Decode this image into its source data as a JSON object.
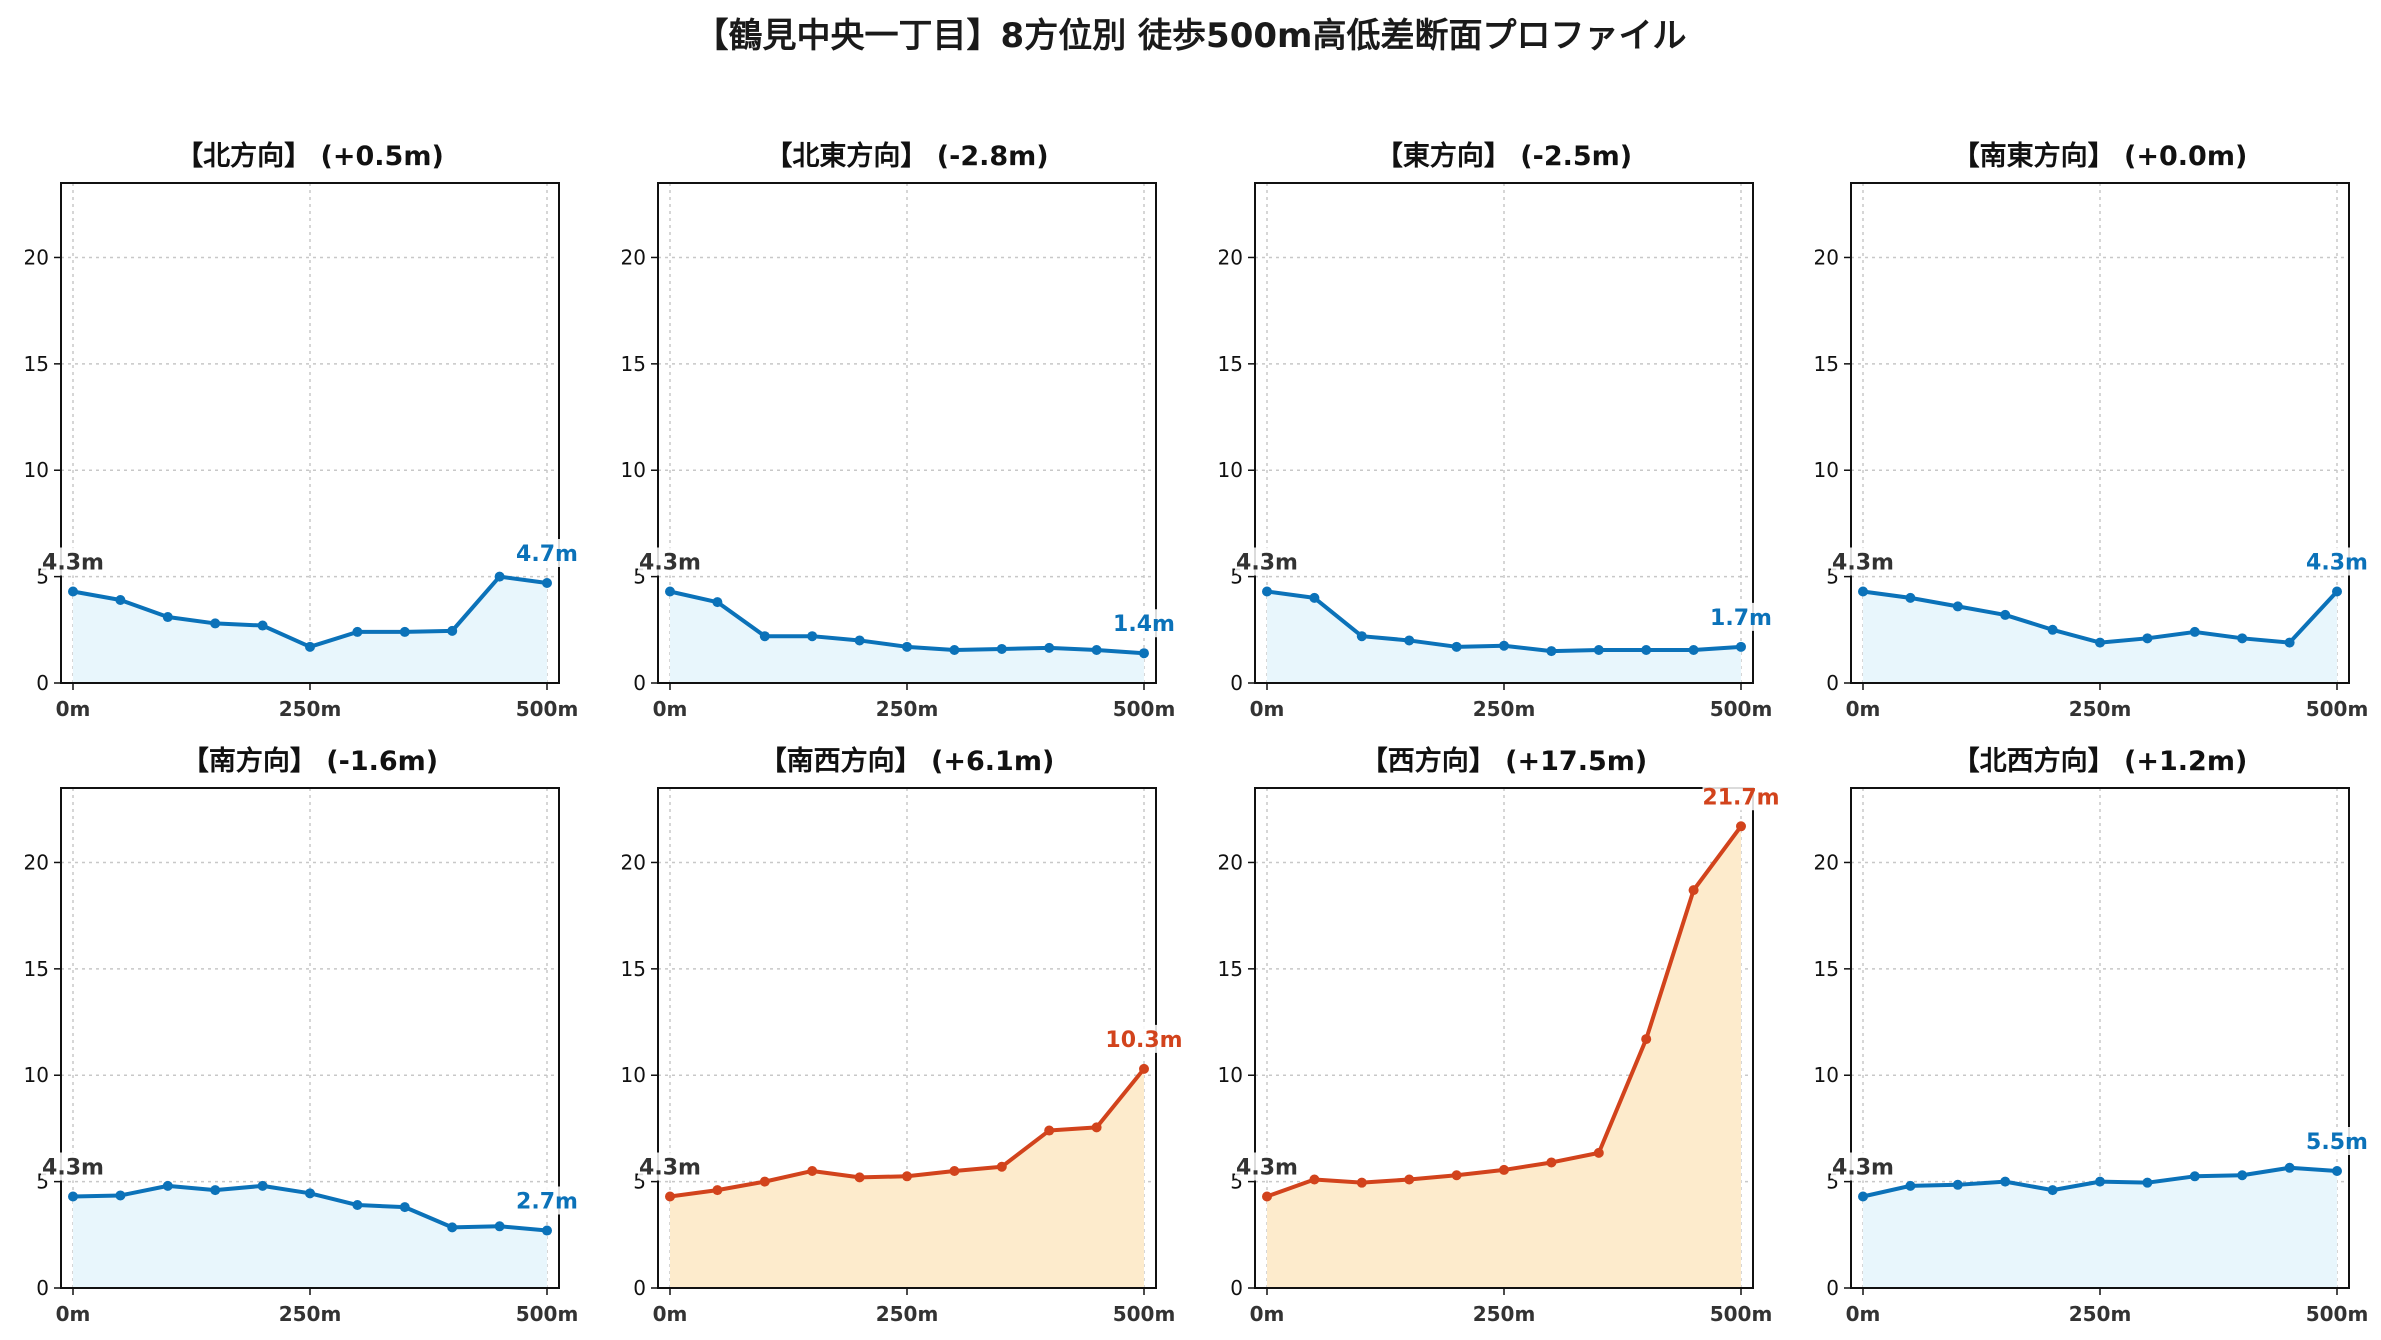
{
  "title": "【鶴見中央一丁目】8方位別 徒歩500m高低差断面プロファイル",
  "colors": {
    "blue_line": "#0b72b9",
    "blue_fill": "#e8f6fc",
    "red_line": "#d2431c",
    "red_fill": "#fdebcc",
    "grid": "#c8c8c8",
    "start_label": "#333333"
  },
  "chart_data": [
    {
      "type": "line",
      "title": "【北方向】 (+0.5m)",
      "x_tick_labels": [
        "0m",
        "250m",
        "500m"
      ],
      "x": [
        0,
        50,
        100,
        150,
        200,
        250,
        300,
        350,
        400,
        450,
        500
      ],
      "y": [
        4.3,
        3.9,
        3.1,
        2.8,
        2.7,
        1.7,
        2.4,
        2.4,
        2.45,
        5.0,
        4.7
      ],
      "ylim": [
        0,
        23.5
      ],
      "y_ticks": [
        0,
        5,
        10,
        15,
        20
      ],
      "start_label": "4.3m",
      "end_label": "4.7m",
      "color": "blue",
      "grid": true
    },
    {
      "type": "line",
      "title": "【北東方向】 (-2.8m)",
      "x_tick_labels": [
        "0m",
        "250m",
        "500m"
      ],
      "x": [
        0,
        50,
        100,
        150,
        200,
        250,
        300,
        350,
        400,
        450,
        500
      ],
      "y": [
        4.3,
        3.8,
        2.2,
        2.2,
        2.0,
        1.7,
        1.55,
        1.6,
        1.65,
        1.55,
        1.4
      ],
      "ylim": [
        0,
        23.5
      ],
      "y_ticks": [
        0,
        5,
        10,
        15,
        20
      ],
      "start_label": "4.3m",
      "end_label": "1.4m",
      "color": "blue",
      "grid": true
    },
    {
      "type": "line",
      "title": "【東方向】 (-2.5m)",
      "x_tick_labels": [
        "0m",
        "250m",
        "500m"
      ],
      "x": [
        0,
        50,
        100,
        150,
        200,
        250,
        300,
        350,
        400,
        450,
        500
      ],
      "y": [
        4.3,
        4.0,
        2.2,
        2.0,
        1.7,
        1.75,
        1.5,
        1.55,
        1.55,
        1.55,
        1.7
      ],
      "ylim": [
        0,
        23.5
      ],
      "y_ticks": [
        0,
        5,
        10,
        15,
        20
      ],
      "start_label": "4.3m",
      "end_label": "1.7m",
      "color": "blue",
      "grid": true
    },
    {
      "type": "line",
      "title": "【南東方向】 (+0.0m)",
      "x_tick_labels": [
        "0m",
        "250m",
        "500m"
      ],
      "x": [
        0,
        50,
        100,
        150,
        200,
        250,
        300,
        350,
        400,
        450,
        500
      ],
      "y": [
        4.3,
        4.0,
        3.6,
        3.2,
        2.5,
        1.9,
        2.1,
        2.4,
        2.1,
        1.9,
        4.3
      ],
      "ylim": [
        0,
        23.5
      ],
      "y_ticks": [
        0,
        5,
        10,
        15,
        20
      ],
      "start_label": "4.3m",
      "end_label": "4.3m",
      "color": "blue",
      "grid": true
    },
    {
      "type": "line",
      "title": "【南方向】 (-1.6m)",
      "x_tick_labels": [
        "0m",
        "250m",
        "500m"
      ],
      "x": [
        0,
        50,
        100,
        150,
        200,
        250,
        300,
        350,
        400,
        450,
        500
      ],
      "y": [
        4.3,
        4.35,
        4.8,
        4.6,
        4.8,
        4.45,
        3.9,
        3.8,
        2.85,
        2.9,
        2.7
      ],
      "ylim": [
        0,
        23.5
      ],
      "y_ticks": [
        0,
        5,
        10,
        15,
        20
      ],
      "start_label": "4.3m",
      "end_label": "2.7m",
      "color": "blue",
      "grid": true
    },
    {
      "type": "line",
      "title": "【南西方向】 (+6.1m)",
      "x_tick_labels": [
        "0m",
        "250m",
        "500m"
      ],
      "x": [
        0,
        50,
        100,
        150,
        200,
        250,
        300,
        350,
        400,
        450,
        500
      ],
      "y": [
        4.3,
        4.6,
        5.0,
        5.5,
        5.2,
        5.25,
        5.5,
        5.7,
        7.4,
        7.55,
        10.3
      ],
      "ylim": [
        0,
        23.5
      ],
      "y_ticks": [
        0,
        5,
        10,
        15,
        20
      ],
      "start_label": "4.3m",
      "end_label": "10.3m",
      "color": "red",
      "grid": true
    },
    {
      "type": "line",
      "title": "【西方向】 (+17.5m)",
      "x_tick_labels": [
        "0m",
        "250m",
        "500m"
      ],
      "x": [
        0,
        50,
        100,
        150,
        200,
        250,
        300,
        350,
        400,
        450,
        500
      ],
      "y": [
        4.3,
        5.1,
        4.95,
        5.1,
        5.3,
        5.55,
        5.9,
        6.35,
        11.7,
        18.7,
        21.7
      ],
      "ylim": [
        0,
        23.5
      ],
      "y_ticks": [
        0,
        5,
        10,
        15,
        20
      ],
      "start_label": "4.3m",
      "end_label": "21.7m",
      "color": "red",
      "grid": true
    },
    {
      "type": "line",
      "title": "【北西方向】 (+1.2m)",
      "x_tick_labels": [
        "0m",
        "250m",
        "500m"
      ],
      "x": [
        0,
        50,
        100,
        150,
        200,
        250,
        300,
        350,
        400,
        450,
        500
      ],
      "y": [
        4.3,
        4.8,
        4.85,
        5.0,
        4.6,
        5.0,
        4.95,
        5.25,
        5.3,
        5.65,
        5.5
      ],
      "ylim": [
        0,
        23.5
      ],
      "y_ticks": [
        0,
        5,
        10,
        15,
        20
      ],
      "start_label": "4.3m",
      "end_label": "5.5m",
      "color": "blue",
      "grid": true
    }
  ]
}
